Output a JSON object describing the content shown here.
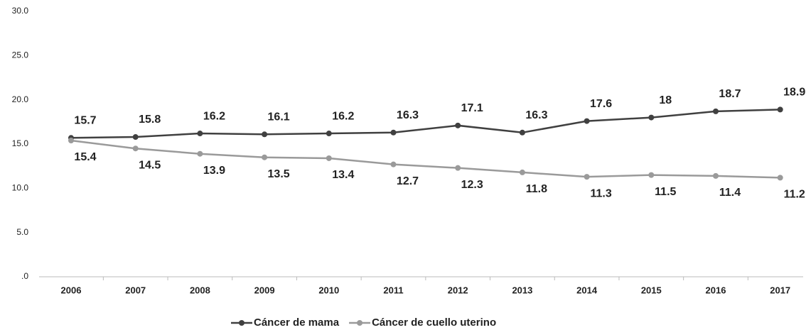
{
  "chart_data": {
    "type": "line",
    "categories": [
      "2006",
      "2007",
      "2008",
      "2009",
      "2010",
      "2011",
      "2012",
      "2013",
      "2014",
      "2015",
      "2016",
      "2017"
    ],
    "series": [
      {
        "name": "Cáncer de mama",
        "color": "#404040",
        "values": [
          15.7,
          15.8,
          16.2,
          16.1,
          16.2,
          16.3,
          17.1,
          16.3,
          17.6,
          18,
          18.7,
          18.9
        ]
      },
      {
        "name": "Cáncer de cuello uterino",
        "color": "#9a9a9a",
        "values": [
          15.4,
          14.5,
          13.9,
          13.5,
          13.4,
          12.7,
          12.3,
          11.8,
          11.3,
          11.5,
          11.4,
          11.2
        ]
      }
    ],
    "ylim": [
      0,
      30
    ],
    "yticks": [
      {
        "value": 0,
        "label": ".0"
      },
      {
        "value": 5,
        "label": "5.0"
      },
      {
        "value": 10,
        "label": "10.0"
      },
      {
        "value": 15,
        "label": "15.0"
      },
      {
        "value": 20,
        "label": "20.0"
      },
      {
        "value": 25,
        "label": "25.0"
      },
      {
        "value": 30,
        "label": "30.0"
      }
    ],
    "grid": false,
    "legend": "bottom"
  }
}
